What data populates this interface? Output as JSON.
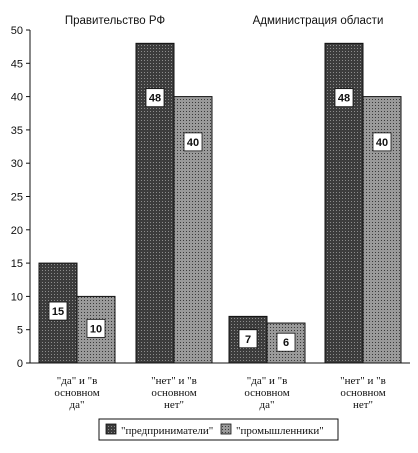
{
  "chart_data": {
    "type": "bar",
    "titles": [
      "Правительство РФ",
      "Администрация области"
    ],
    "categories": [
      [
        "\"да\" и \"в",
        "основном",
        "да\""
      ],
      [
        "\"нет\" и \"в",
        "основном",
        "нет\""
      ],
      [
        "\"да\" и \"в",
        "основном",
        "да\""
      ],
      [
        "\"нет\" и \"в",
        "основном",
        "нет\""
      ]
    ],
    "series": [
      {
        "name": "\"предприниматели\"",
        "values": [
          15,
          48,
          7,
          48
        ],
        "color": "#555555"
      },
      {
        "name": "\"промышленники\"",
        "values": [
          10,
          40,
          6,
          40
        ],
        "color": "#8a8a8a"
      }
    ],
    "data_labels": [
      [
        "15",
        "48",
        "7",
        "48"
      ],
      [
        "10",
        "40",
        "6",
        "40"
      ]
    ],
    "ylim": [
      0,
      50
    ],
    "yticks": [
      "0",
      "5",
      "10",
      "15",
      "20",
      "25",
      "30",
      "35",
      "40",
      "45",
      "50"
    ],
    "grid": false,
    "legend_position": "bottom"
  }
}
